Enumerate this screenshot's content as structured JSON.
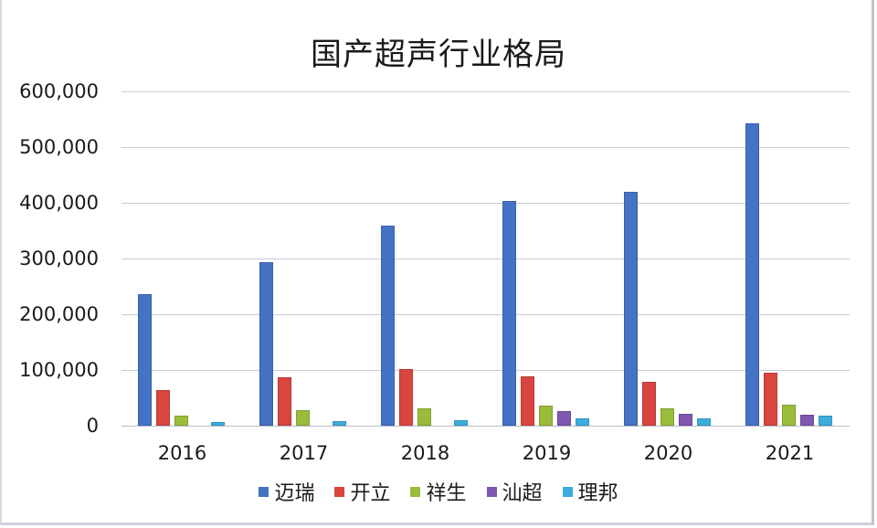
{
  "chart_data": {
    "type": "bar",
    "title": "国产超声行业格局",
    "xlabel": "",
    "ylabel": "",
    "ylim": [
      0,
      600000
    ],
    "yticks": [
      "0",
      "100,000",
      "200,000",
      "300,000",
      "400,000",
      "500,000",
      "600,000"
    ],
    "grid": true,
    "legend_position": "bottom",
    "categories": [
      "2016",
      "2017",
      "2018",
      "2019",
      "2020",
      "2021"
    ],
    "series": [
      {
        "name": "迈瑞",
        "color": "#4472C4",
        "values": [
          236000,
          293000,
          359000,
          403000,
          420000,
          543000
        ]
      },
      {
        "name": "开立",
        "color": "#D9453F",
        "values": [
          64000,
          87000,
          101000,
          89000,
          79000,
          95000
        ]
      },
      {
        "name": "祥生",
        "color": "#9BBB3B",
        "values": [
          18000,
          28000,
          31000,
          36000,
          31000,
          38000
        ]
      },
      {
        "name": "汕超",
        "color": "#7F56B0",
        "values": [
          0,
          0,
          0,
          26000,
          22000,
          20000
        ]
      },
      {
        "name": "理邦",
        "color": "#3BAEDC",
        "values": [
          7000,
          8000,
          10000,
          13000,
          13000,
          18000
        ]
      }
    ]
  }
}
